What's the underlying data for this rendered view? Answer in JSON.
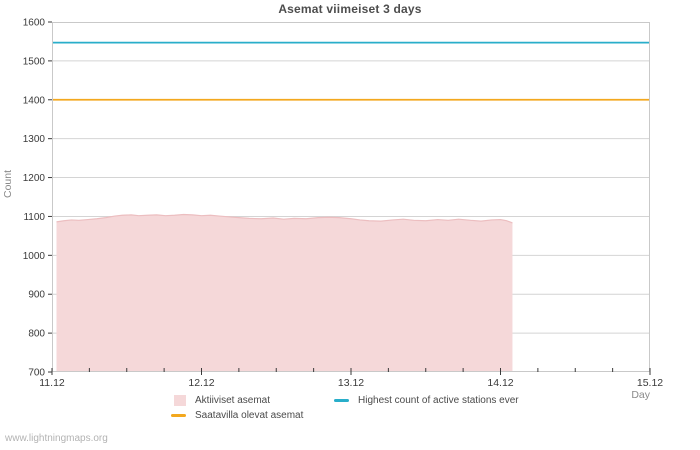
{
  "page": {
    "title": "Asemat viimeiset 3 days",
    "watermark": "www.lightningmaps.org"
  },
  "axes": {
    "y_title": "Count",
    "x_title": "Day"
  },
  "legend": [
    {
      "label": "Aktiiviset asemat",
      "swatch": "area",
      "color": "#f5d8d9"
    },
    {
      "label": "Highest count of active stations ever",
      "swatch": "line",
      "color": "#29aeca"
    },
    {
      "label": "Saatavilla olevat asemat",
      "swatch": "line",
      "color": "#f3a81e"
    }
  ],
  "chart_data": {
    "type": "area",
    "title": "Asemat viimeiset 3 days",
    "xlabel": "Day",
    "ylabel": "Count",
    "xlim": [
      0,
      4
    ],
    "ylim": [
      700,
      1600
    ],
    "y_ticks": [
      700,
      800,
      900,
      1000,
      1100,
      1200,
      1300,
      1400,
      1500,
      1600
    ],
    "x_tick_values": [
      0,
      1,
      2,
      3,
      4
    ],
    "x_tick_labels": [
      "11.12",
      "12.12",
      "13.12",
      "14.12",
      "15.12"
    ],
    "x_minor_step": 0.25,
    "grid": "horizontal",
    "legend_position": "bottom",
    "colors": {
      "grid": "#d4d4d4",
      "border": "#c9c9c9",
      "tick": "#3a3a3a"
    },
    "series": [
      {
        "name": "Aktiiviset asemat",
        "type": "area",
        "fill": "#f5d8d9",
        "edge": "#ecbec0",
        "points": [
          [
            0.03,
            1086
          ],
          [
            0.08,
            1089
          ],
          [
            0.13,
            1091
          ],
          [
            0.18,
            1090
          ],
          [
            0.24,
            1092
          ],
          [
            0.3,
            1094
          ],
          [
            0.36,
            1097
          ],
          [
            0.42,
            1101
          ],
          [
            0.47,
            1103
          ],
          [
            0.53,
            1104
          ],
          [
            0.58,
            1102
          ],
          [
            0.64,
            1103
          ],
          [
            0.7,
            1104
          ],
          [
            0.76,
            1102
          ],
          [
            0.82,
            1103
          ],
          [
            0.88,
            1105
          ],
          [
            0.94,
            1104
          ],
          [
            1.0,
            1102
          ],
          [
            1.06,
            1103
          ],
          [
            1.12,
            1101
          ],
          [
            1.18,
            1099
          ],
          [
            1.25,
            1097
          ],
          [
            1.32,
            1095
          ],
          [
            1.4,
            1094
          ],
          [
            1.48,
            1096
          ],
          [
            1.55,
            1093
          ],
          [
            1.62,
            1095
          ],
          [
            1.7,
            1094
          ],
          [
            1.78,
            1097
          ],
          [
            1.85,
            1098
          ],
          [
            1.92,
            1097
          ],
          [
            2.0,
            1094
          ],
          [
            2.06,
            1091
          ],
          [
            2.12,
            1089
          ],
          [
            2.2,
            1088
          ],
          [
            2.28,
            1091
          ],
          [
            2.35,
            1093
          ],
          [
            2.42,
            1090
          ],
          [
            2.5,
            1089
          ],
          [
            2.58,
            1092
          ],
          [
            2.65,
            1090
          ],
          [
            2.72,
            1093
          ],
          [
            2.8,
            1090
          ],
          [
            2.87,
            1088
          ],
          [
            2.94,
            1091
          ],
          [
            3.0,
            1092
          ],
          [
            3.04,
            1089
          ],
          [
            3.07,
            1085
          ],
          [
            3.08,
            1083
          ]
        ]
      },
      {
        "name": "Saatavilla olevat asemat",
        "type": "hline",
        "value": 1400,
        "color": "#f3a81e"
      },
      {
        "name": "Highest count of active stations ever",
        "type": "hline",
        "value": 1547,
        "color": "#29aeca"
      }
    ]
  }
}
